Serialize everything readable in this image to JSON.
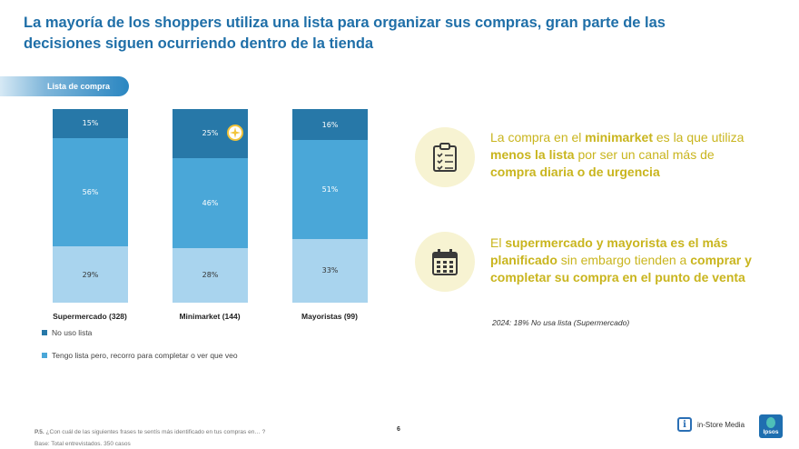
{
  "title": "La mayoría de los shoppers utiliza una lista para organizar sus compras, gran parte de las decisiones siguen ocurriendo dentro de la tienda",
  "pill_label": "Lista de compra",
  "colors": {
    "no_uso": "#2778a8",
    "tengo_lista": "#4aa7d8",
    "tercera": "#a9d4ee",
    "accent": "#c9b51e"
  },
  "chart_data": {
    "type": "bar",
    "stacked": true,
    "categories": [
      "Supermercado (328)",
      "Minimarket (144)",
      "Mayoristas (99)"
    ],
    "series": [
      {
        "name": "No uso lista",
        "values": [
          15,
          25,
          16
        ],
        "labels": [
          "15%",
          "25%",
          "16%"
        ]
      },
      {
        "name": "Tengo lista pero, recorro para completar o ver que veo",
        "values": [
          56,
          46,
          51
        ],
        "labels": [
          "56%",
          "46%",
          "51%"
        ]
      },
      {
        "name": "",
        "values": [
          29,
          28,
          33
        ],
        "labels": [
          "29%",
          "28%",
          "33%"
        ]
      }
    ],
    "ylim": [
      0,
      100
    ]
  },
  "legend": [
    {
      "label": "No uso lista"
    },
    {
      "label": "Tengo lista pero, recorro para completar o ver que veo"
    }
  ],
  "insights": [
    {
      "icon": "clipboard-checklist-icon",
      "parts": [
        {
          "t": "La compra en el ",
          "b": false
        },
        {
          "t": "minimarket",
          "b": true
        },
        {
          "t": " es la que utiliza ",
          "b": false
        },
        {
          "t": "menos la lista",
          "b": true
        },
        {
          "t": " por ser un canal más de ",
          "b": false
        },
        {
          "t": "compra diaria o de urgencia",
          "b": true
        }
      ]
    },
    {
      "icon": "calendar-icon",
      "parts": [
        {
          "t": "El ",
          "b": false
        },
        {
          "t": "supermercado y mayorista es el más planificado",
          "b": true
        },
        {
          "t": " sin embargo tienden a ",
          "b": false
        },
        {
          "t": "comprar y completar su compra en el punto de venta",
          "b": true
        }
      ]
    }
  ],
  "note": "2024: 18% No usa lista (Supermercado)",
  "footer": {
    "question_prefix": "P.5.",
    "question": " ¿Con cuál de las siguientes frases te sentís más identificado en tus compras en… ?",
    "base": "Base: Total entrevistados. 350 casos",
    "page": "6",
    "brand": "in-Store Media",
    "brand_icon_letter": "i",
    "ipsos": "Ipsos"
  }
}
